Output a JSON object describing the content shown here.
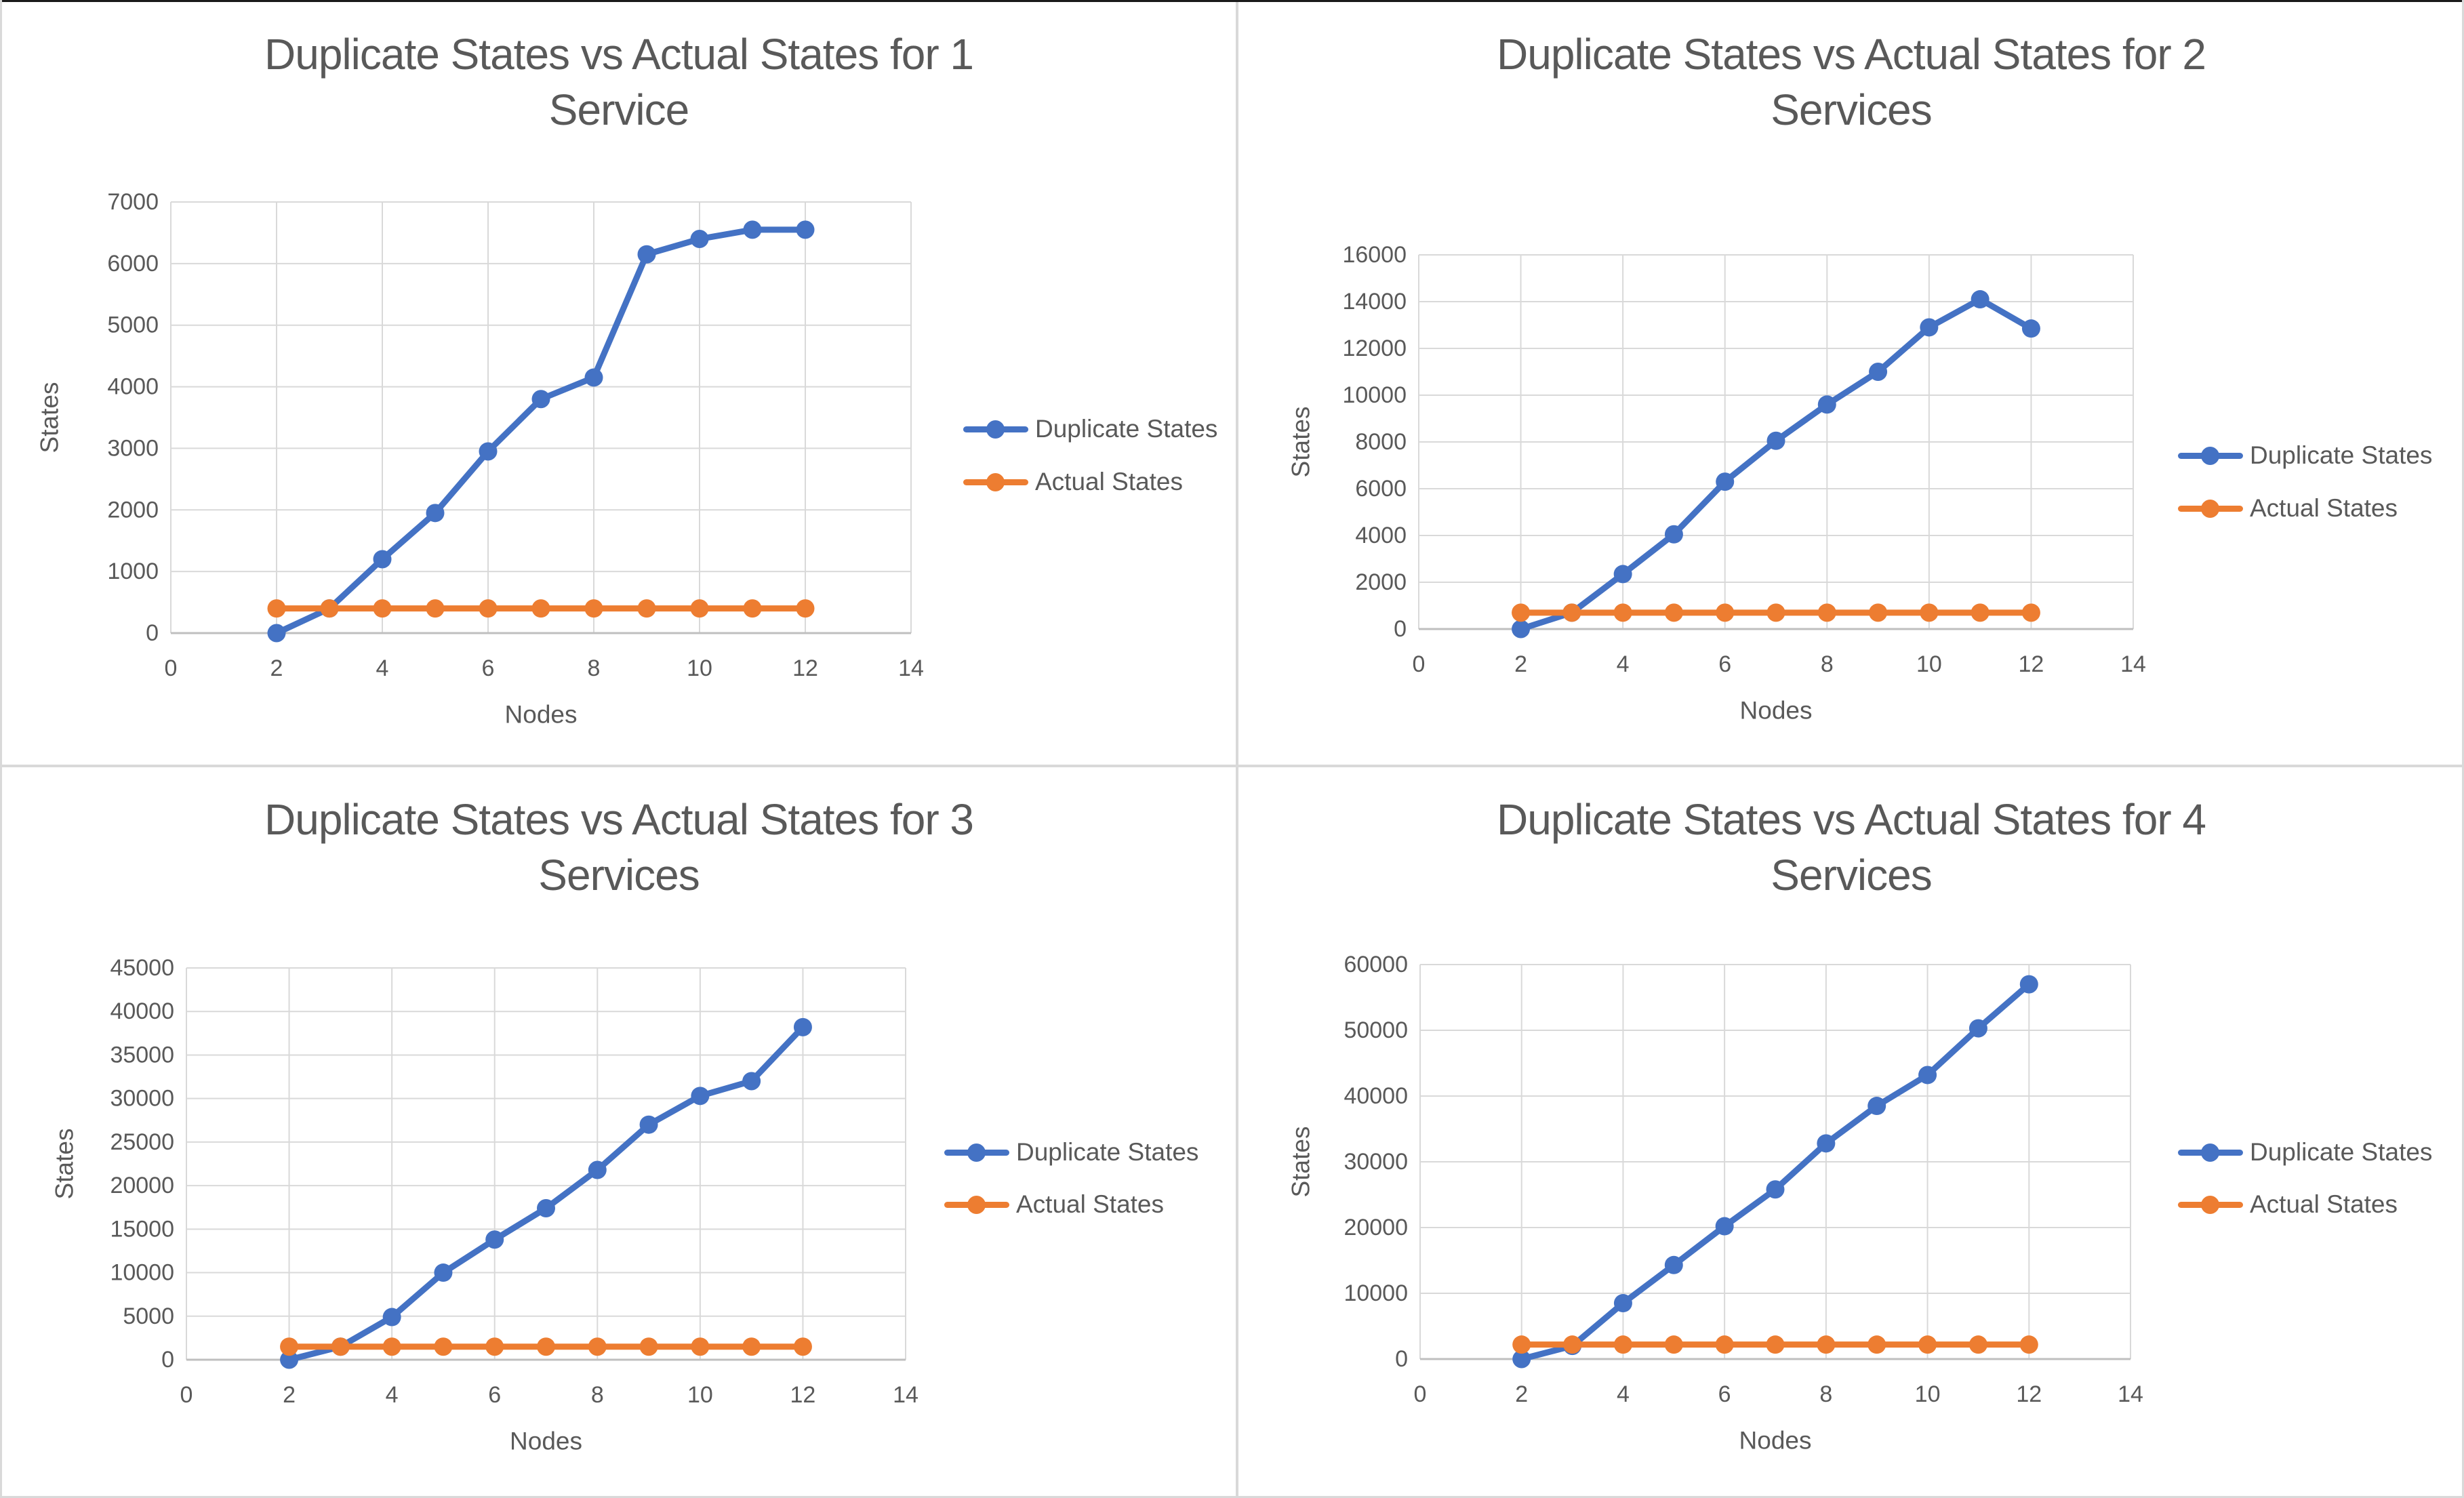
{
  "page": {
    "background": "#ffffff",
    "description": "2x2 grid of Excel-style line charts comparing duplicate vs actual states"
  },
  "colors": {
    "duplicate_series": "#4472C4",
    "actual_series": "#ED7D31",
    "text_gray": "#595959",
    "gridline": "#D9D9D9",
    "axis_line": "#BFBFBF"
  },
  "chart_data": [
    {
      "type": "line",
      "title": "Duplicate States vs Actual States for 1 Service",
      "title_line1": "Duplicate States vs Actual States for 1",
      "title_line2": "Service",
      "xlabel": "Nodes",
      "ylabel": "States",
      "x": [
        2,
        3,
        4,
        5,
        6,
        7,
        8,
        9,
        10,
        11,
        12
      ],
      "xlim": [
        0,
        14
      ],
      "xtick_step": 2,
      "ylim": [
        0,
        7000
      ],
      "ytick_step": 1000,
      "grid": true,
      "legend_position": "right",
      "series": [
        {
          "name": "Duplicate States",
          "color": "#4472C4",
          "values": [
            0,
            400,
            1200,
            1950,
            2950,
            3800,
            4150,
            6150,
            6400,
            6550,
            6550
          ]
        },
        {
          "name": "Actual States",
          "color": "#ED7D31",
          "values": [
            400,
            400,
            400,
            400,
            400,
            400,
            400,
            400,
            400,
            400,
            400
          ]
        }
      ]
    },
    {
      "type": "line",
      "title": "Duplicate States vs Actual States for 2 Services",
      "title_line1": "Duplicate States vs Actual States for 2",
      "title_line2": "Services",
      "xlabel": "Nodes",
      "ylabel": "States",
      "x": [
        2,
        3,
        4,
        5,
        6,
        7,
        8,
        9,
        10,
        11,
        12
      ],
      "xlim": [
        0,
        14
      ],
      "xtick_step": 2,
      "ylim": [
        0,
        16000
      ],
      "ytick_step": 2000,
      "grid": true,
      "legend_position": "right",
      "series": [
        {
          "name": "Duplicate States",
          "color": "#4472C4",
          "values": [
            0,
            700,
            2350,
            4050,
            6300,
            8050,
            9600,
            11000,
            12900,
            14100,
            12850
          ]
        },
        {
          "name": "Actual States",
          "color": "#ED7D31",
          "values": [
            700,
            700,
            700,
            700,
            700,
            700,
            700,
            700,
            700,
            700,
            700
          ]
        }
      ]
    },
    {
      "type": "line",
      "title": "Duplicate States vs Actual States for 3 Services",
      "title_line1": "Duplicate States vs Actual States for 3",
      "title_line2": "Services",
      "xlabel": "Nodes",
      "ylabel": "States",
      "x": [
        2,
        3,
        4,
        5,
        6,
        7,
        8,
        9,
        10,
        11,
        12
      ],
      "xlim": [
        0,
        14
      ],
      "xtick_step": 2,
      "ylim": [
        0,
        45000
      ],
      "ytick_step": 5000,
      "grid": true,
      "legend_position": "right",
      "series": [
        {
          "name": "Duplicate States",
          "color": "#4472C4",
          "values": [
            0,
            1500,
            4900,
            10000,
            13800,
            17400,
            21800,
            27000,
            30300,
            32000,
            38200
          ]
        },
        {
          "name": "Actual States",
          "color": "#ED7D31",
          "values": [
            1500,
            1500,
            1500,
            1500,
            1500,
            1500,
            1500,
            1500,
            1500,
            1500,
            1500
          ]
        }
      ]
    },
    {
      "type": "line",
      "title": "Duplicate States vs Actual States for 4 Services",
      "title_line1": "Duplicate States vs Actual States for 4",
      "title_line2": "Services",
      "xlabel": "Nodes",
      "ylabel": "States",
      "x": [
        2,
        3,
        4,
        5,
        6,
        7,
        8,
        9,
        10,
        11,
        12
      ],
      "xlim": [
        0,
        14
      ],
      "xtick_step": 2,
      "ylim": [
        0,
        60000
      ],
      "ytick_step": 10000,
      "grid": true,
      "legend_position": "right",
      "series": [
        {
          "name": "Duplicate States",
          "color": "#4472C4",
          "values": [
            0,
            2000,
            8500,
            14300,
            20200,
            25800,
            32800,
            38500,
            43200,
            50300,
            57000
          ]
        },
        {
          "name": "Actual States",
          "color": "#ED7D31",
          "values": [
            2200,
            2200,
            2200,
            2200,
            2200,
            2200,
            2200,
            2200,
            2200,
            2200,
            2200
          ]
        }
      ]
    }
  ]
}
